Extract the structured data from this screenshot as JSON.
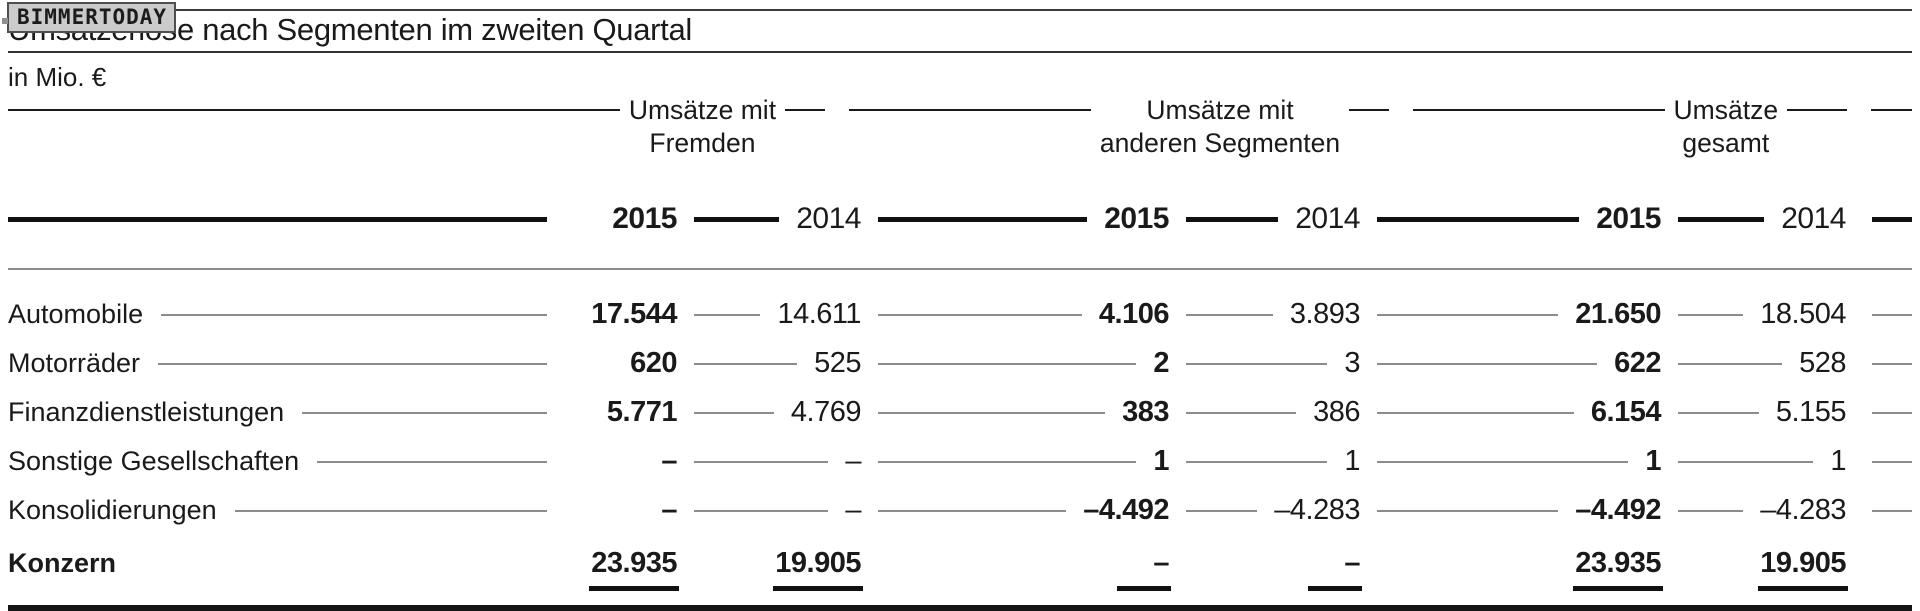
{
  "badge": "BIMMERTODAY",
  "title": "Umsatzerlöse nach Segmenten im zweiten Quartal",
  "subtitle": "in Mio. €",
  "colors": {
    "text": "#1a1a1a",
    "leader_line": "#8c8c8c",
    "rule_black": "#111111",
    "badge_bg": "#cbcbcb"
  },
  "chart_data": {
    "type": "table",
    "title": "Umsatzerlöse nach Segmenten im zweiten Quartal",
    "unit": "in Mio. €",
    "column_groups": [
      {
        "line1": "Umsätze mit",
        "line2": "Fremden"
      },
      {
        "line1": "Umsätze mit",
        "line2": "anderen Segmenten"
      },
      {
        "line1": "Umsätze",
        "line2": "gesamt"
      }
    ],
    "years": [
      "2015",
      "2014",
      "2015",
      "2014",
      "2015",
      "2014"
    ],
    "rows": [
      {
        "label": "Automobile",
        "values": [
          "17.544",
          "14.611",
          "4.106",
          "3.893",
          "21.650",
          "18.504"
        ]
      },
      {
        "label": "Motorräder",
        "values": [
          "620",
          "525",
          "2",
          "3",
          "622",
          "528"
        ]
      },
      {
        "label": "Finanzdienstleistungen",
        "values": [
          "5.771",
          "4.769",
          "383",
          "386",
          "6.154",
          "5.155"
        ]
      },
      {
        "label": "Sonstige Gesellschaften",
        "values": [
          "–",
          "–",
          "1",
          "1",
          "1",
          "1"
        ]
      },
      {
        "label": "Konsolidierungen",
        "values": [
          "–",
          "–",
          "–4.492",
          "–4.283",
          "–4.492",
          "–4.283"
        ]
      },
      {
        "label": "Konzern",
        "values": [
          "23.935",
          "19.905",
          "–",
          "–",
          "23.935",
          "19.905"
        ],
        "total": true
      }
    ]
  }
}
